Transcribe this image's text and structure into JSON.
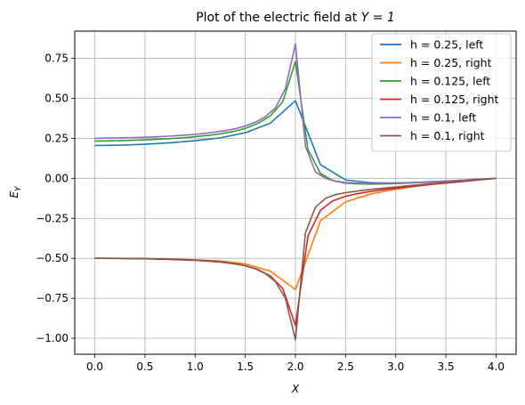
{
  "chart_data": {
    "type": "line",
    "title": "Plot of the electric field at Y = 1",
    "title_prefix": "Plot of the electric field at ",
    "title_math": "Y = 1",
    "xlabel": "X",
    "ylabel_base": "E",
    "ylabel_sub": "Y",
    "xlim": [
      -0.2,
      4.2
    ],
    "ylim": [
      -1.1,
      0.92
    ],
    "xticks": [
      0.0,
      0.5,
      1.0,
      1.5,
      2.0,
      2.5,
      3.0,
      3.5,
      4.0
    ],
    "xtick_labels": [
      "0.0",
      "0.5",
      "1.0",
      "1.5",
      "2.0",
      "2.5",
      "3.0",
      "3.5",
      "4.0"
    ],
    "yticks": [
      0.75,
      0.5,
      0.25,
      0.0,
      -0.25,
      -0.5,
      -0.75,
      -1.0
    ],
    "ytick_labels": [
      "0.75",
      "0.50",
      "0.25",
      "0.00",
      "−0.25",
      "−0.50",
      "−0.75",
      "−1.00"
    ],
    "grid": true,
    "legend_position": "top-right",
    "series": [
      {
        "name": "h = 0.25, left",
        "color": "#1f77b4",
        "x": [
          0,
          0.25,
          0.5,
          0.75,
          1.0,
          1.25,
          1.5,
          1.75,
          2.0,
          2.25,
          2.5,
          2.75,
          3.0,
          3.25,
          3.5,
          3.75,
          4.0
        ],
        "y": [
          0.205,
          0.207,
          0.213,
          0.222,
          0.235,
          0.253,
          0.285,
          0.345,
          0.485,
          0.085,
          -0.01,
          -0.028,
          -0.03,
          -0.025,
          -0.018,
          -0.01,
          0.0
        ]
      },
      {
        "name": "h = 0.25, right",
        "color": "#ff7f0e",
        "x": [
          0,
          0.25,
          0.5,
          0.75,
          1.0,
          1.25,
          1.5,
          1.75,
          2.0,
          2.25,
          2.5,
          2.75,
          3.0,
          3.25,
          3.5,
          3.75,
          4.0
        ],
        "y": [
          -0.5,
          -0.501,
          -0.503,
          -0.506,
          -0.51,
          -0.517,
          -0.535,
          -0.58,
          -0.695,
          -0.265,
          -0.148,
          -0.098,
          -0.068,
          -0.046,
          -0.028,
          -0.013,
          0.0
        ]
      },
      {
        "name": "h = 0.125, left",
        "color": "#2ca02c",
        "x": [
          0,
          0.125,
          0.25,
          0.375,
          0.5,
          0.625,
          0.75,
          0.875,
          1.0,
          1.125,
          1.25,
          1.375,
          1.5,
          1.625,
          1.75,
          1.875,
          2.0,
          2.125,
          2.25,
          2.375,
          2.5,
          2.625,
          2.75,
          2.875,
          3.0,
          3.125,
          3.25,
          3.375,
          3.5,
          3.625,
          3.75,
          3.875,
          4.0
        ],
        "y": [
          0.233,
          0.234,
          0.236,
          0.238,
          0.241,
          0.244,
          0.248,
          0.253,
          0.26,
          0.268,
          0.278,
          0.292,
          0.312,
          0.343,
          0.39,
          0.48,
          0.73,
          0.18,
          0.03,
          -0.015,
          -0.03,
          -0.035,
          -0.036,
          -0.035,
          -0.033,
          -0.03,
          -0.026,
          -0.022,
          -0.018,
          -0.013,
          -0.009,
          -0.005,
          0.0
        ]
      },
      {
        "name": "h = 0.125, right",
        "color": "#d62728",
        "x": [
          0,
          0.125,
          0.25,
          0.375,
          0.5,
          0.625,
          0.75,
          0.875,
          1.0,
          1.125,
          1.25,
          1.375,
          1.5,
          1.625,
          1.75,
          1.875,
          2.0,
          2.125,
          2.25,
          2.375,
          2.5,
          2.625,
          2.75,
          2.875,
          3.0,
          3.125,
          3.25,
          3.375,
          3.5,
          3.625,
          3.75,
          3.875,
          4.0
        ],
        "y": [
          -0.5,
          -0.5,
          -0.501,
          -0.502,
          -0.503,
          -0.505,
          -0.507,
          -0.51,
          -0.513,
          -0.518,
          -0.524,
          -0.533,
          -0.547,
          -0.57,
          -0.61,
          -0.69,
          -0.92,
          -0.36,
          -0.2,
          -0.14,
          -0.112,
          -0.095,
          -0.082,
          -0.071,
          -0.062,
          -0.053,
          -0.045,
          -0.037,
          -0.03,
          -0.022,
          -0.015,
          -0.007,
          0.0
        ]
      },
      {
        "name": "h = 0.1, left",
        "color": "#9467bd",
        "x": [
          0,
          0.1,
          0.2,
          0.3,
          0.4,
          0.5,
          0.6,
          0.7,
          0.8,
          0.9,
          1.0,
          1.1,
          1.2,
          1.3,
          1.4,
          1.5,
          1.6,
          1.7,
          1.8,
          1.9,
          2.0,
          2.1,
          2.2,
          2.3,
          2.4,
          2.5,
          2.6,
          2.7,
          2.8,
          2.9,
          3.0,
          3.1,
          3.2,
          3.3,
          3.4,
          3.5,
          3.6,
          3.7,
          3.8,
          3.9,
          4.0
        ],
        "y": [
          0.25,
          0.251,
          0.252,
          0.253,
          0.255,
          0.257,
          0.259,
          0.262,
          0.266,
          0.27,
          0.275,
          0.281,
          0.289,
          0.298,
          0.31,
          0.327,
          0.35,
          0.385,
          0.44,
          0.56,
          0.84,
          0.2,
          0.04,
          0.0,
          -0.018,
          -0.026,
          -0.03,
          -0.032,
          -0.032,
          -0.031,
          -0.03,
          -0.028,
          -0.026,
          -0.023,
          -0.02,
          -0.017,
          -0.014,
          -0.01,
          -0.007,
          -0.004,
          0.0
        ]
      },
      {
        "name": "h = 0.1, right",
        "color": "#8c564b",
        "x": [
          0,
          0.1,
          0.2,
          0.3,
          0.4,
          0.5,
          0.6,
          0.7,
          0.8,
          0.9,
          1.0,
          1.1,
          1.2,
          1.3,
          1.4,
          1.5,
          1.6,
          1.7,
          1.8,
          1.9,
          2.0,
          2.1,
          2.2,
          2.3,
          2.4,
          2.5,
          2.6,
          2.7,
          2.8,
          2.9,
          3.0,
          3.1,
          3.2,
          3.3,
          3.4,
          3.5,
          3.6,
          3.7,
          3.8,
          3.9,
          4.0
        ],
        "y": [
          -0.5,
          -0.5,
          -0.5,
          -0.501,
          -0.501,
          -0.502,
          -0.503,
          -0.504,
          -0.506,
          -0.508,
          -0.511,
          -0.514,
          -0.519,
          -0.525,
          -0.534,
          -0.546,
          -0.565,
          -0.595,
          -0.645,
          -0.75,
          -1.01,
          -0.34,
          -0.18,
          -0.125,
          -0.102,
          -0.09,
          -0.081,
          -0.073,
          -0.066,
          -0.06,
          -0.054,
          -0.048,
          -0.042,
          -0.036,
          -0.031,
          -0.026,
          -0.02,
          -0.015,
          -0.01,
          -0.005,
          0.0
        ]
      }
    ]
  }
}
